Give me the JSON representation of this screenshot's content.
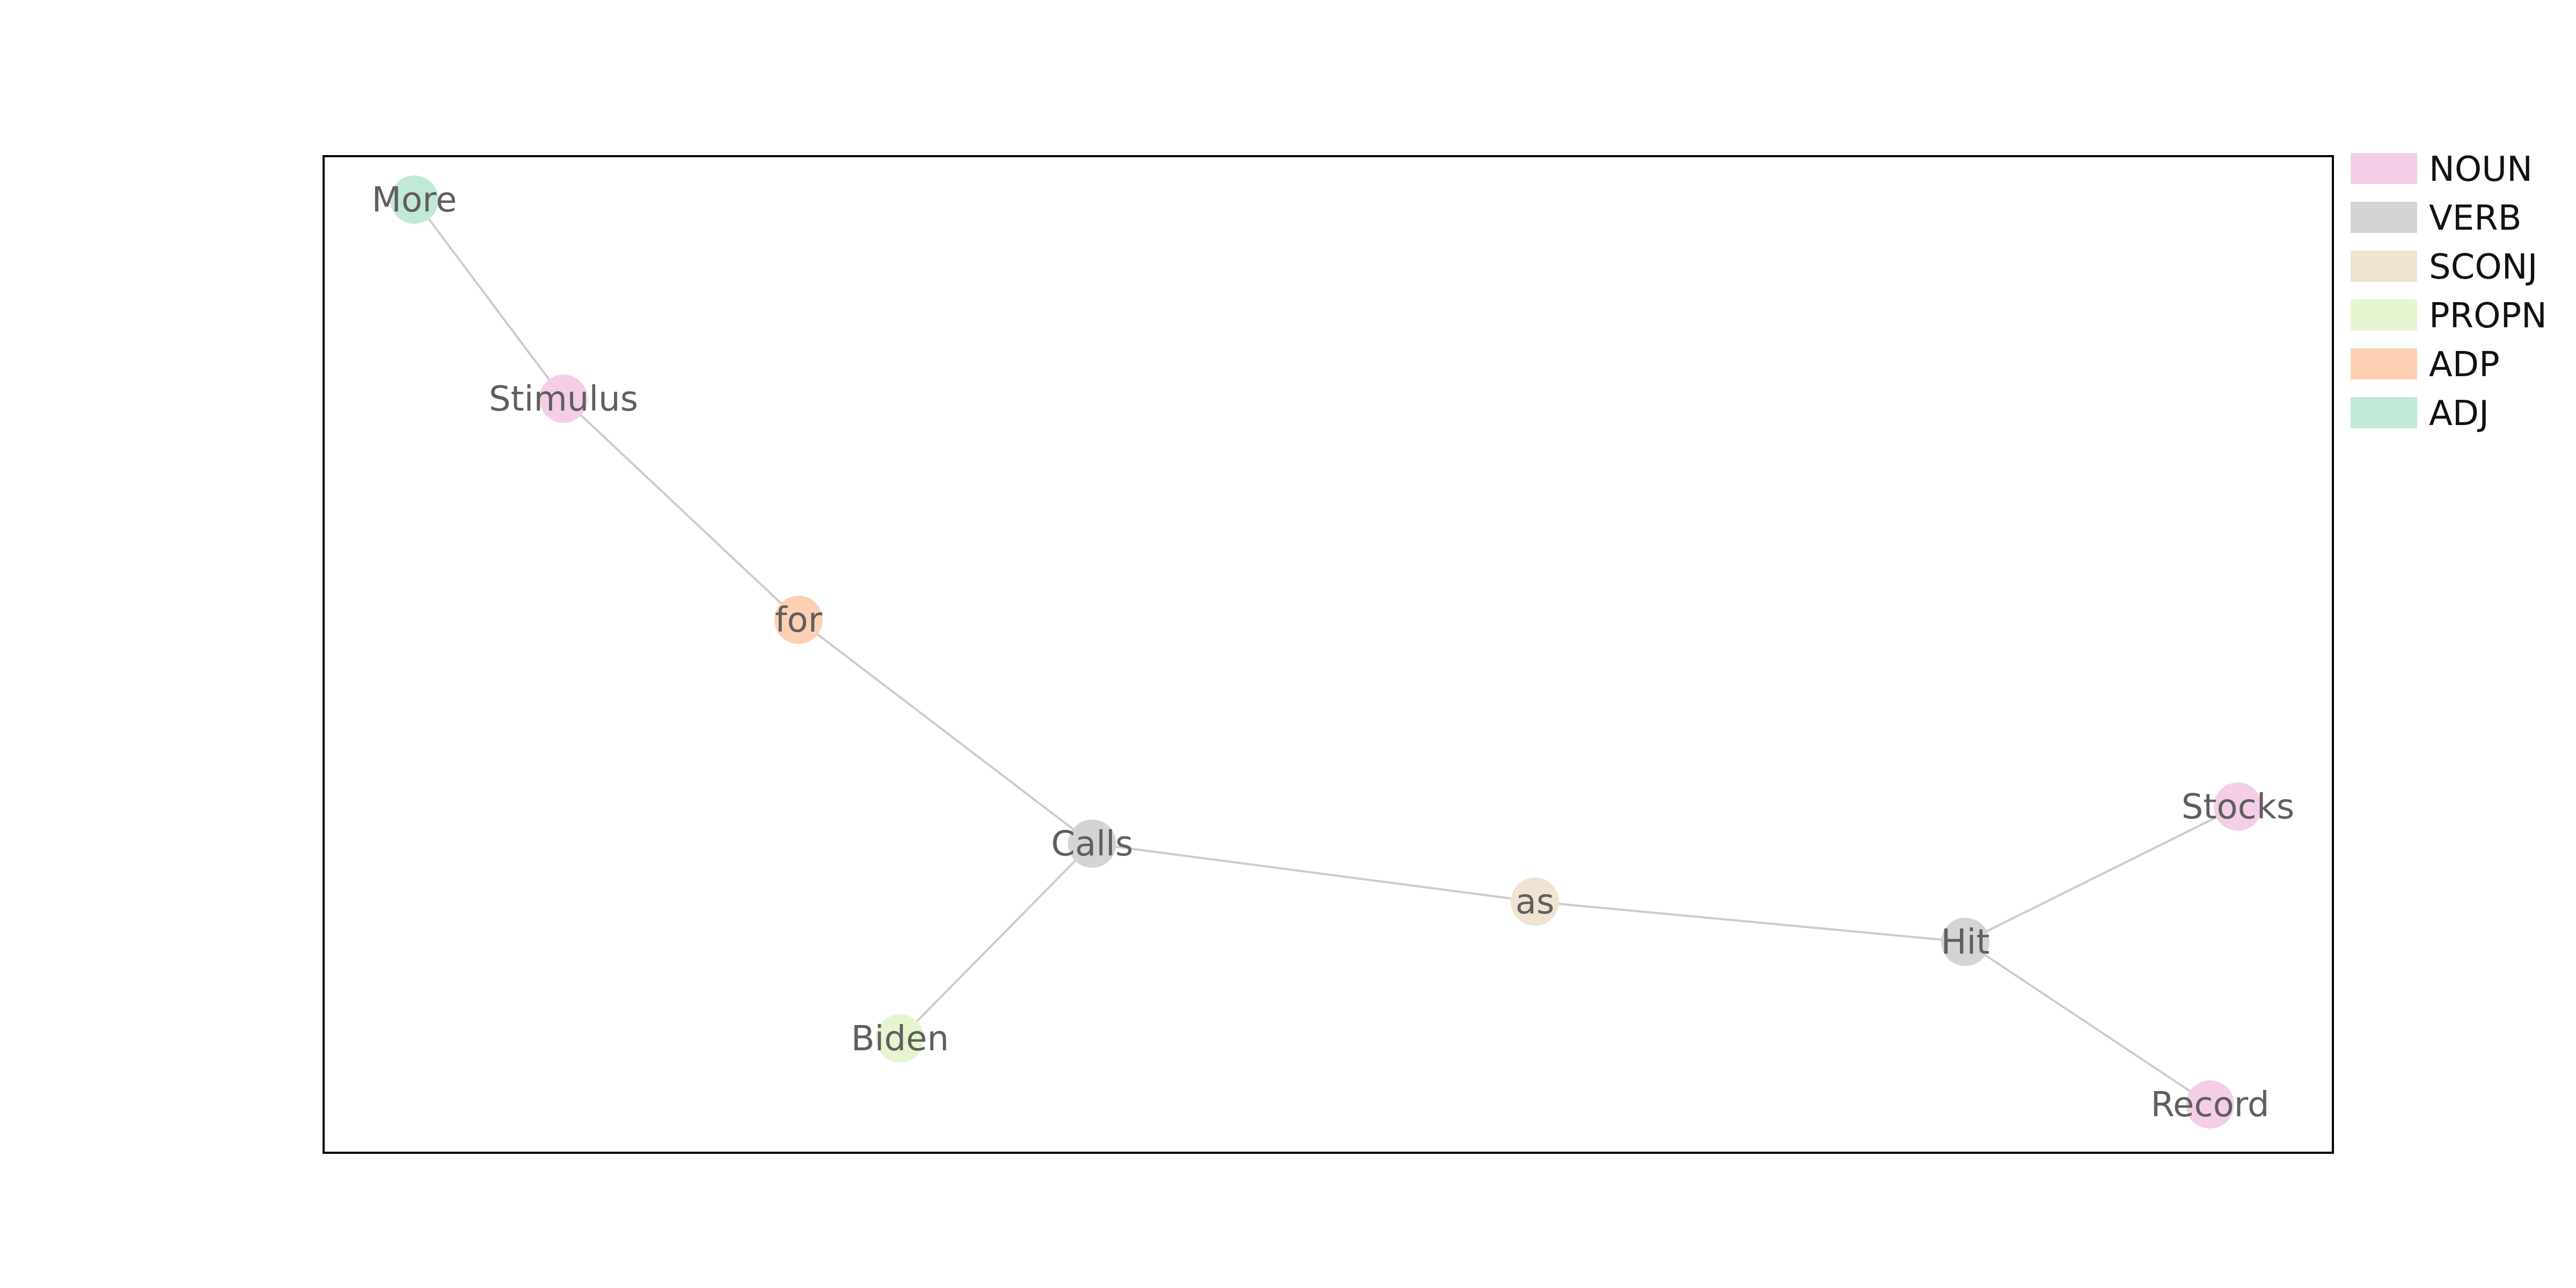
{
  "diagram": {
    "pos_colors": {
      "NOUN": "#f4cee6",
      "VERB": "#d4d4d4",
      "SCONJ": "#f1e3d1",
      "PROPN": "#e6f5d0",
      "ADP": "#fdd0b4",
      "ADJ": "#c2e8d8"
    },
    "edge_color": "#cccccc",
    "frame_color": "#000000",
    "legend": [
      {
        "label": "NOUN",
        "color": "#f4cee6"
      },
      {
        "label": "VERB",
        "color": "#d4d4d4"
      },
      {
        "label": "SCONJ",
        "color": "#f1e3d1"
      },
      {
        "label": "PROPN",
        "color": "#e6f5d0"
      },
      {
        "label": "ADP",
        "color": "#fdd0b4"
      },
      {
        "label": "ADJ",
        "color": "#c2e8d8"
      }
    ],
    "nodes": [
      {
        "id": "more",
        "label": "More",
        "pos": "ADJ"
      },
      {
        "id": "stimulus",
        "label": "Stimulus",
        "pos": "NOUN"
      },
      {
        "id": "for",
        "label": "for",
        "pos": "ADP"
      },
      {
        "id": "calls",
        "label": "Calls",
        "pos": "VERB"
      },
      {
        "id": "biden",
        "label": "Biden",
        "pos": "PROPN"
      },
      {
        "id": "as",
        "label": "as",
        "pos": "SCONJ"
      },
      {
        "id": "hit",
        "label": "Hit",
        "pos": "VERB"
      },
      {
        "id": "stocks",
        "label": "Stocks",
        "pos": "NOUN"
      },
      {
        "id": "record",
        "label": "Record",
        "pos": "NOUN"
      }
    ],
    "edges": [
      {
        "from": "more",
        "to": "stimulus"
      },
      {
        "from": "stimulus",
        "to": "for"
      },
      {
        "from": "for",
        "to": "calls"
      },
      {
        "from": "calls",
        "to": "biden"
      },
      {
        "from": "calls",
        "to": "as"
      },
      {
        "from": "as",
        "to": "hit"
      },
      {
        "from": "hit",
        "to": "stocks"
      },
      {
        "from": "hit",
        "to": "record"
      }
    ]
  }
}
